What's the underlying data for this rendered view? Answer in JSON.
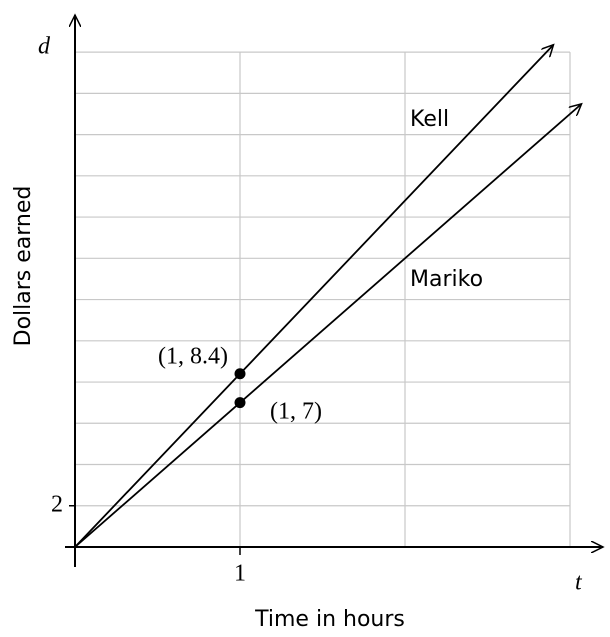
{
  "chart_data": {
    "type": "line",
    "ylabel": "Dollars earned",
    "xlabel": "Time in hours",
    "y_axis_symbol": "d",
    "x_axis_symbol": "t",
    "xlim": [
      0,
      3.2
    ],
    "ylim": [
      0,
      25.8
    ],
    "xticks": [
      1
    ],
    "yticks": [
      2
    ],
    "xgrid": [
      1,
      2,
      3
    ],
    "ygrid": [
      2,
      4,
      6,
      8,
      10,
      12,
      14,
      16,
      18,
      20,
      22,
      24
    ],
    "grid": true,
    "series": [
      {
        "name": "Kell",
        "color": "#000000",
        "x": [
          0,
          1,
          2.9
        ],
        "values": [
          0,
          8.4,
          24.36
        ],
        "value_labels": [
          null,
          "(1, 8.4)",
          null
        ]
      },
      {
        "name": "Mariko",
        "color": "#000000",
        "x": [
          0,
          1,
          3.07
        ],
        "values": [
          0,
          7,
          21.49
        ],
        "value_labels": [
          null,
          "(1, 7)",
          null
        ]
      }
    ]
  }
}
